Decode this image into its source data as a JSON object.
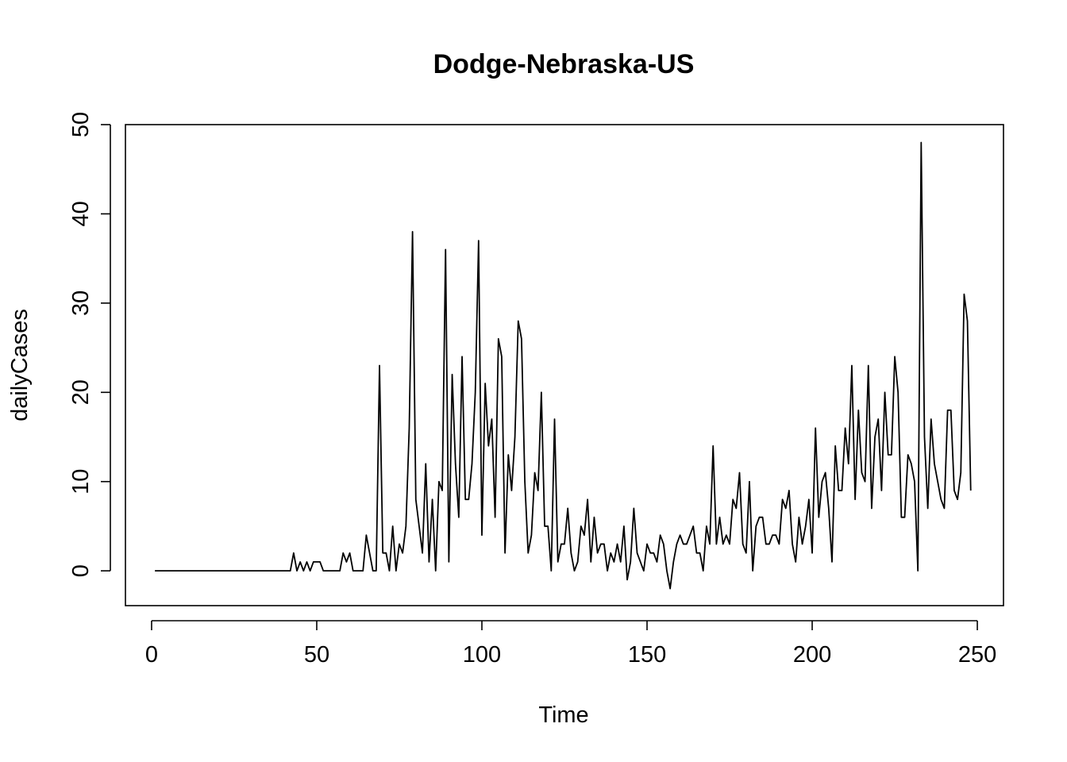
{
  "chart_data": {
    "type": "line",
    "title": "Dodge-Nebraska-US",
    "xlabel": "Time",
    "ylabel": "dailyCases",
    "xlim": [
      -7.92,
      257.92
    ],
    "ylim": [
      -3.9,
      50
    ],
    "x_ticks": [
      "0",
      "50",
      "100",
      "150",
      "200",
      "250"
    ],
    "y_ticks": [
      "0",
      "10",
      "20",
      "30",
      "40",
      "50"
    ],
    "x_tick_values": [
      0,
      50,
      100,
      150,
      200,
      250
    ],
    "y_tick_values": [
      0,
      10,
      20,
      30,
      40,
      50
    ],
    "grid": false,
    "box": true,
    "line_color": "#000000",
    "series": [
      {
        "x_start": 1,
        "values": [
          0,
          0,
          0,
          0,
          0,
          0,
          0,
          0,
          0,
          0,
          0,
          0,
          0,
          0,
          0,
          0,
          0,
          0,
          0,
          0,
          0,
          0,
          0,
          0,
          0,
          0,
          0,
          0,
          0,
          0,
          0,
          0,
          0,
          0,
          0,
          0,
          0,
          0,
          0,
          0,
          0,
          0,
          2,
          0,
          1,
          0,
          1,
          0,
          1,
          1,
          1,
          0,
          0,
          0,
          0,
          0,
          0,
          2,
          1,
          2,
          0,
          0,
          0,
          0,
          4,
          2,
          0,
          0,
          23,
          2,
          2,
          0,
          5,
          0,
          3,
          2,
          5,
          16,
          38,
          8,
          5,
          2,
          12,
          1,
          8,
          0,
          10,
          9,
          36,
          1,
          22,
          12,
          6,
          24,
          8,
          8,
          12,
          20,
          37,
          4,
          21,
          14,
          17,
          6,
          26,
          24,
          2,
          13,
          9,
          15,
          28,
          26,
          10,
          2,
          4,
          11,
          9,
          20,
          5,
          5,
          0,
          17,
          1,
          3,
          3,
          7,
          2,
          0,
          1,
          5,
          4,
          8,
          1,
          6,
          2,
          3,
          3,
          0,
          2,
          1,
          3,
          1,
          5,
          -1,
          1,
          7,
          2,
          1,
          0,
          3,
          2,
          2,
          1,
          4,
          3,
          0,
          -2,
          1,
          3,
          4,
          3,
          3,
          4,
          5,
          2,
          2,
          0,
          5,
          3,
          14,
          3,
          6,
          3,
          4,
          3,
          8,
          7,
          11,
          3,
          2,
          10,
          0,
          5,
          6,
          6,
          3,
          3,
          4,
          4,
          3,
          8,
          7,
          9,
          3,
          1,
          6,
          3,
          5,
          8,
          2,
          16,
          6,
          10,
          11,
          7,
          1,
          14,
          9,
          9,
          16,
          12,
          23,
          8,
          18,
          11,
          10,
          23,
          7,
          15,
          17,
          9,
          20,
          13,
          13,
          24,
          20,
          6,
          6,
          13,
          12,
          10,
          0,
          48,
          15,
          7,
          17,
          12,
          10,
          8,
          7,
          18,
          18,
          9,
          8,
          11,
          31,
          28,
          9
        ]
      }
    ]
  }
}
